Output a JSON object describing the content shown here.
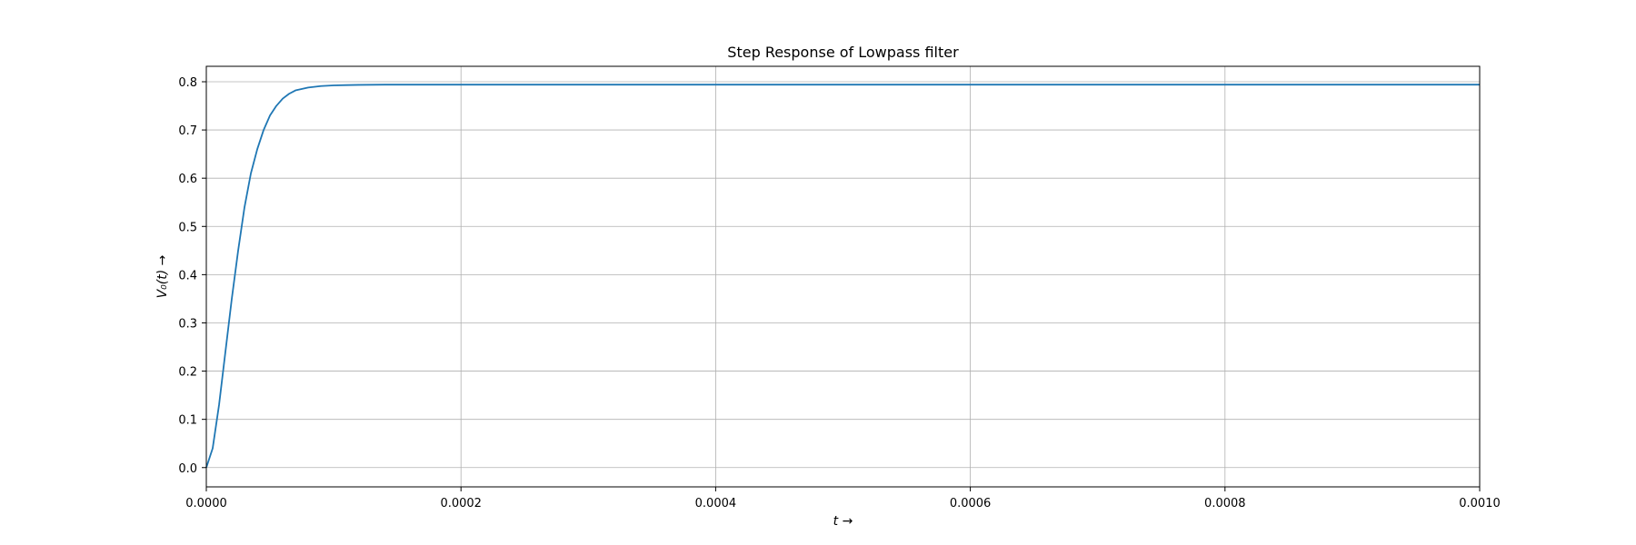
{
  "chart_data": {
    "type": "line",
    "title": "Step Response of Lowpass filter",
    "xlabel": "t →",
    "ylabel": "V₀(t) →",
    "xlim": [
      0,
      0.001
    ],
    "ylim": [
      -0.04,
      0.832
    ],
    "xticks": [
      0,
      0.0002,
      0.0004,
      0.0006,
      0.0008,
      0.001
    ],
    "xtick_labels": [
      "0.0000",
      "0.0002",
      "0.0004",
      "0.0006",
      "0.0008",
      "0.0010"
    ],
    "yticks": [
      0,
      0.1,
      0.2,
      0.3,
      0.4,
      0.5,
      0.6,
      0.7,
      0.8
    ],
    "ytick_labels": [
      "0.0",
      "0.1",
      "0.2",
      "0.3",
      "0.4",
      "0.5",
      "0.6",
      "0.7",
      "0.8"
    ],
    "grid": true,
    "series": [
      {
        "color": "#1f77b4",
        "x": [
          0,
          5e-06,
          1e-05,
          1.5e-05,
          2e-05,
          2.5e-05,
          3e-05,
          3.5e-05,
          4e-05,
          4.5e-05,
          5e-05,
          5.5e-05,
          6e-05,
          6.5e-05,
          7e-05,
          8e-05,
          9e-05,
          0.0001,
          0.00011,
          0.00012,
          0.00014,
          0.00016,
          0.0002,
          0.0003,
          0.0005,
          0.0008,
          0.001
        ],
        "y": [
          0,
          0.04,
          0.13,
          0.24,
          0.35,
          0.45,
          0.54,
          0.61,
          0.66,
          0.7,
          0.73,
          0.75,
          0.765,
          0.775,
          0.782,
          0.788,
          0.791,
          0.7925,
          0.793,
          0.7935,
          0.794,
          0.794,
          0.794,
          0.794,
          0.794,
          0.794,
          0.794
        ]
      }
    ]
  }
}
